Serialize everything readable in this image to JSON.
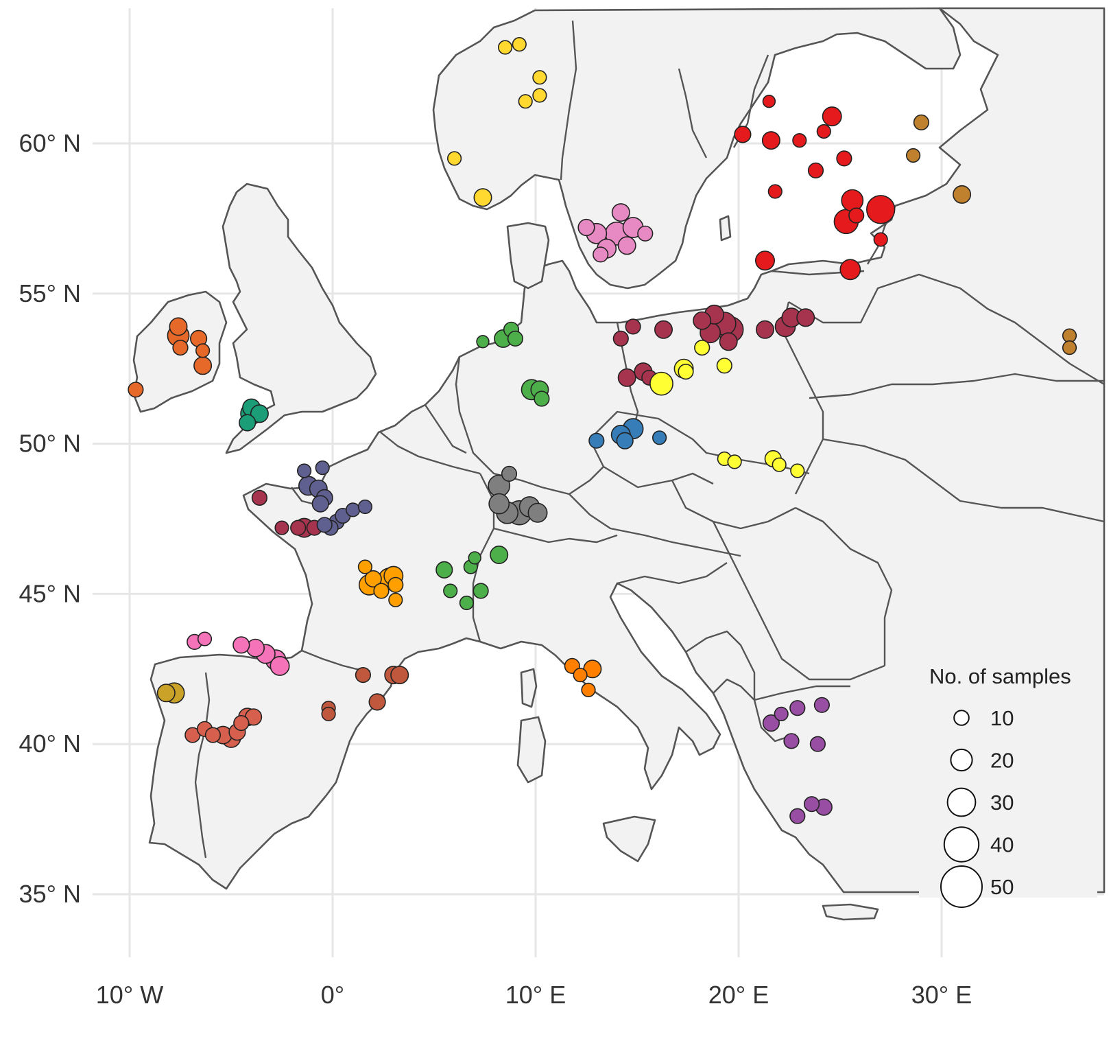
{
  "map": {
    "lon_range": [
      -12,
      37
    ],
    "lat_range": [
      34.5,
      64.5
    ],
    "lat_ticks": [
      {
        "value": 35,
        "label": "35° N"
      },
      {
        "value": 40,
        "label": "40° N"
      },
      {
        "value": 45,
        "label": "45° N"
      },
      {
        "value": 50,
        "label": "50° N"
      },
      {
        "value": 55,
        "label": "55° N"
      },
      {
        "value": 60,
        "label": "60° N"
      }
    ],
    "lon_ticks": [
      {
        "value": -10,
        "label": "10° W"
      },
      {
        "value": 0,
        "label": "0°"
      },
      {
        "value": 10,
        "label": "10° E"
      },
      {
        "value": 20,
        "label": "20° E"
      },
      {
        "value": 30,
        "label": "30° E"
      }
    ],
    "land_color": "#f2f2f2",
    "border_color": "#555555",
    "grid": true
  },
  "legend": {
    "title": "No. of samples",
    "placement": "bottom-right",
    "entries": [
      {
        "value": 10,
        "label": "10"
      },
      {
        "value": 20,
        "label": "20"
      },
      {
        "value": 30,
        "label": "30"
      },
      {
        "value": 40,
        "label": "40"
      },
      {
        "value": 50,
        "label": "50"
      }
    ]
  },
  "chart_data": {
    "type": "scatter",
    "size_encoding": "No. of samples",
    "groups": [
      {
        "color": "#ffd92f",
        "points": [
          [
            8.5,
            63.2,
            8
          ],
          [
            9.2,
            63.3,
            8
          ],
          [
            10.2,
            62.2,
            8
          ],
          [
            10.2,
            61.6,
            8
          ],
          [
            9.5,
            61.4,
            8
          ],
          [
            6,
            59.5,
            8
          ],
          [
            7.4,
            58.2,
            14
          ]
        ]
      },
      {
        "color": "#e41a1c",
        "points": [
          [
            21.5,
            61.4,
            6
          ],
          [
            24.6,
            60.9,
            16
          ],
          [
            24.2,
            60.4,
            8
          ],
          [
            20.2,
            60.3,
            12
          ],
          [
            21.6,
            60.1,
            14
          ],
          [
            23,
            60.1,
            8
          ],
          [
            25.2,
            59.5,
            10
          ],
          [
            23.8,
            59.1,
            10
          ],
          [
            21.8,
            58.4,
            8
          ],
          [
            25.6,
            58.1,
            20
          ],
          [
            25.3,
            57.4,
            24
          ],
          [
            25.8,
            57.6,
            10
          ],
          [
            27,
            57.8,
            30
          ],
          [
            27,
            56.8,
            8
          ],
          [
            21.3,
            56.1,
            16
          ],
          [
            25.5,
            55.8,
            18
          ]
        ]
      },
      {
        "color": "#bf812d",
        "points": [
          [
            29,
            60.7,
            10
          ],
          [
            28.6,
            59.6,
            8
          ],
          [
            31,
            58.3,
            14
          ],
          [
            36.3,
            53.6,
            8
          ],
          [
            36.3,
            53.2,
            8
          ]
        ]
      },
      {
        "color": "#e78ac3",
        "points": [
          [
            14.2,
            57.7,
            14
          ],
          [
            12.5,
            57.2,
            12
          ],
          [
            13,
            57,
            18
          ],
          [
            14,
            57,
            22
          ],
          [
            14.8,
            57.2,
            18
          ],
          [
            15.4,
            57,
            10
          ],
          [
            13.5,
            56.5,
            16
          ],
          [
            14.5,
            56.6,
            14
          ],
          [
            13.2,
            56.3,
            10
          ]
        ]
      },
      {
        "color": "#e6692a",
        "points": [
          [
            -7.6,
            53.9,
            14
          ],
          [
            -7.6,
            53.6,
            20
          ],
          [
            -7.5,
            53.2,
            10
          ],
          [
            -6.6,
            53.5,
            12
          ],
          [
            -6.4,
            53.1,
            8
          ],
          [
            -6.4,
            52.6,
            14
          ],
          [
            -9.7,
            51.8,
            10
          ]
        ]
      },
      {
        "color": "#1b9e77",
        "points": [
          [
            -4,
            51.2,
            14
          ],
          [
            -4,
            51,
            20
          ],
          [
            -3.6,
            51,
            14
          ],
          [
            -4.2,
            50.7,
            12
          ]
        ]
      },
      {
        "color": "#4daf4a",
        "points": [
          [
            7.4,
            53.4,
            6
          ],
          [
            8.4,
            53.5,
            14
          ],
          [
            8.8,
            53.8,
            10
          ],
          [
            9,
            53.5,
            10
          ],
          [
            9.8,
            51.8,
            18
          ],
          [
            10.2,
            51.8,
            14
          ],
          [
            10.3,
            51.5,
            10
          ],
          [
            5.5,
            45.8,
            12
          ],
          [
            6.8,
            45.9,
            8
          ],
          [
            7,
            46.2,
            6
          ],
          [
            8.2,
            46.3,
            14
          ],
          [
            5.8,
            45.1,
            8
          ],
          [
            7.3,
            45.1,
            10
          ],
          [
            6.6,
            44.7,
            8
          ]
        ]
      },
      {
        "color": "#a6344e",
        "points": [
          [
            14.2,
            53.5,
            10
          ],
          [
            14.8,
            53.9,
            10
          ],
          [
            16.3,
            53.8,
            14
          ],
          [
            18.2,
            54.1,
            14
          ],
          [
            18.8,
            54.3,
            16
          ],
          [
            19.3,
            54,
            22
          ],
          [
            19.6,
            53.8,
            26
          ],
          [
            18.6,
            53.7,
            18
          ],
          [
            19.5,
            53.4,
            14
          ],
          [
            21.3,
            53.8,
            14
          ],
          [
            22.3,
            53.9,
            18
          ],
          [
            22.6,
            54.2,
            16
          ],
          [
            23.3,
            54.2,
            14
          ],
          [
            14.5,
            52.2,
            14
          ],
          [
            15.3,
            52.4,
            14
          ],
          [
            15.6,
            52.2,
            10
          ],
          [
            -3.6,
            48.2,
            10
          ],
          [
            -2.5,
            47.2,
            8
          ],
          [
            -1.7,
            47.2,
            10
          ],
          [
            -1.4,
            47.2,
            16
          ],
          [
            -0.9,
            47.2,
            10
          ]
        ]
      },
      {
        "color": "#ffff33",
        "points": [
          [
            16.2,
            52,
            22
          ],
          [
            17.3,
            52.5,
            16
          ],
          [
            18.2,
            53.2,
            10
          ],
          [
            19.3,
            52.6,
            10
          ],
          [
            17.4,
            52.4,
            10
          ],
          [
            19.3,
            49.5,
            8
          ],
          [
            19.8,
            49.4,
            8
          ],
          [
            21.7,
            49.5,
            12
          ],
          [
            22,
            49.3,
            8
          ],
          [
            22.9,
            49.1,
            8
          ]
        ]
      },
      {
        "color": "#377eb8",
        "points": [
          [
            13,
            50.1,
            10
          ],
          [
            14.2,
            50.3,
            16
          ],
          [
            14.8,
            50.5,
            18
          ],
          [
            14.4,
            50.1,
            12
          ],
          [
            16.1,
            50.2,
            8
          ]
        ]
      },
      {
        "color": "#606090",
        "points": [
          [
            -1.4,
            49.1,
            8
          ],
          [
            -0.5,
            49.2,
            8
          ],
          [
            -1.2,
            48.6,
            16
          ],
          [
            -0.7,
            48.5,
            14
          ],
          [
            -0.4,
            48.2,
            12
          ],
          [
            -0.6,
            48,
            12
          ],
          [
            0.2,
            47.4,
            10
          ],
          [
            0.5,
            47.6,
            10
          ],
          [
            1,
            47.8,
            8
          ],
          [
            1.6,
            47.9,
            8
          ],
          [
            -0.1,
            47.2,
            10
          ],
          [
            -0.4,
            47.3,
            10
          ]
        ]
      },
      {
        "color": "#7f7f7f",
        "points": [
          [
            8.7,
            49,
            10
          ],
          [
            8.2,
            48.6,
            20
          ],
          [
            8.2,
            48,
            18
          ],
          [
            8.6,
            47.7,
            20
          ],
          [
            9.2,
            47.7,
            24
          ],
          [
            9.7,
            47.9,
            18
          ],
          [
            10.1,
            47.7,
            16
          ]
        ]
      },
      {
        "color": "#ff9f00",
        "points": [
          [
            1.6,
            45.9,
            8
          ],
          [
            2,
            45.5,
            12
          ],
          [
            2.8,
            45.5,
            20
          ],
          [
            3,
            45.6,
            16
          ],
          [
            3.1,
            45.3,
            10
          ],
          [
            1.8,
            45.3,
            18
          ],
          [
            2.4,
            45.1,
            10
          ],
          [
            3.1,
            44.8,
            8
          ]
        ]
      },
      {
        "color": "#ff7f00",
        "points": [
          [
            11.8,
            42.6,
            10
          ],
          [
            12.8,
            42.5,
            14
          ],
          [
            12.2,
            42.3,
            8
          ],
          [
            12.6,
            41.8,
            8
          ]
        ]
      },
      {
        "color": "#f573b8",
        "points": [
          [
            -6.8,
            43.4,
            10
          ],
          [
            -6.3,
            43.5,
            8
          ],
          [
            -4.5,
            43.3,
            12
          ],
          [
            -3.8,
            43.2,
            14
          ],
          [
            -3.3,
            43,
            16
          ],
          [
            -2.8,
            42.8,
            18
          ],
          [
            -2.6,
            42.6,
            16
          ]
        ]
      },
      {
        "color": "#c9a227",
        "points": [
          [
            -8.2,
            41.7,
            14
          ],
          [
            -7.8,
            41.7,
            18
          ]
        ]
      },
      {
        "color": "#d6604d",
        "points": [
          [
            -6.9,
            40.3,
            10
          ],
          [
            -6.3,
            40.5,
            10
          ],
          [
            -5.9,
            40.3,
            10
          ],
          [
            -5.4,
            40.3,
            14
          ],
          [
            -5,
            40.2,
            16
          ],
          [
            -4.7,
            40.4,
            12
          ],
          [
            -4.5,
            40.7,
            10
          ],
          [
            -4.2,
            40.9,
            14
          ],
          [
            -3.9,
            40.9,
            12
          ]
        ]
      },
      {
        "color": "#c0583e",
        "points": [
          [
            1.5,
            42.3,
            10
          ],
          [
            3,
            42.3,
            14
          ],
          [
            3.3,
            42.3,
            14
          ],
          [
            2.2,
            41.4,
            12
          ],
          [
            -0.2,
            41.2,
            8
          ],
          [
            -0.2,
            41,
            8
          ]
        ]
      },
      {
        "color": "#984ea3",
        "points": [
          [
            21.6,
            40.7,
            12
          ],
          [
            22.1,
            41,
            8
          ],
          [
            22.9,
            41.2,
            10
          ],
          [
            24.1,
            41.3,
            10
          ],
          [
            22.6,
            40.1,
            10
          ],
          [
            23.9,
            40,
            10
          ],
          [
            22.9,
            37.6,
            10
          ],
          [
            23.6,
            38,
            10
          ],
          [
            24.2,
            37.9,
            12
          ]
        ]
      }
    ]
  }
}
